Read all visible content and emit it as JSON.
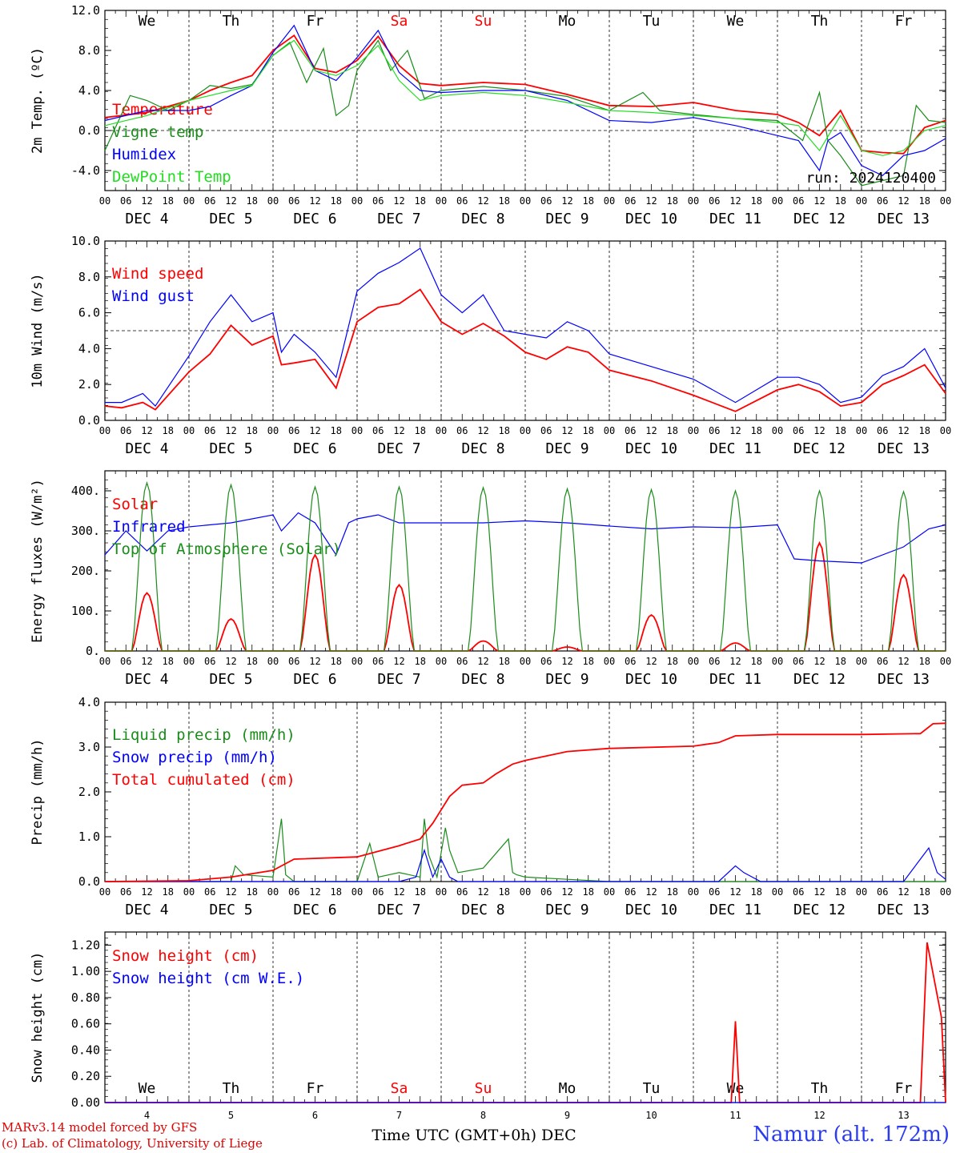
{
  "footer": {
    "credit_line1": "MARv3.14 model forced by GFS",
    "credit_line2": "(c) Lab. of Climatology, University of Liege",
    "station": "Namur (alt. 172m)",
    "time_axis_label": "Time UTC (GMT+0h) DEC"
  },
  "run_label": "run: 2024120400",
  "colors": {
    "red": "#ff0000",
    "green": "#1a8c1a",
    "blue": "#0000ff",
    "lightgreen": "#22dd22",
    "weekend": "#ff0000",
    "axis": "#000000"
  },
  "axis": {
    "hour_ticks": [
      "00",
      "06",
      "12",
      "18"
    ],
    "days": [
      "DEC 4",
      "DEC 5",
      "DEC 6",
      "DEC 7",
      "DEC 8",
      "DEC 9",
      "DEC 10",
      "DEC 11",
      "DEC 12",
      "DEC 13"
    ],
    "weekdays": [
      "We",
      "Th",
      "Fr",
      "Sa",
      "Su",
      "Mo",
      "Tu",
      "We",
      "Th",
      "Fr"
    ],
    "weekend_flags": [
      false,
      false,
      false,
      true,
      true,
      false,
      false,
      false,
      false,
      false
    ],
    "day_numbers": [
      "4",
      "5",
      "6",
      "7",
      "8",
      "9",
      "10",
      "11",
      "12",
      "13"
    ]
  },
  "chart_data": [
    {
      "type": "line",
      "ylabel": "2m Temp. (ºC)",
      "ylim": [
        -6,
        12
      ],
      "yticks": [
        "12.0",
        "8.0",
        "4.0",
        "0.0",
        "-4.0"
      ],
      "reference_line": 0,
      "x_unit": "day index (0 = DEC 4 00 UTC)",
      "series": [
        {
          "name": "Temperature",
          "color": "red",
          "x": [
            0,
            0.5,
            1,
            1.25,
            1.5,
            1.75,
            2,
            2.25,
            2.5,
            2.75,
            3,
            3.25,
            3.5,
            3.75,
            4,
            4.5,
            5,
            5.5,
            6,
            6.5,
            7,
            7.5,
            8,
            8.25,
            8.5,
            8.75,
            9,
            9.25,
            9.5,
            9.75,
            10
          ],
          "y": [
            1.3,
            1.8,
            3.0,
            4.0,
            4.8,
            5.5,
            8.0,
            9.5,
            6.2,
            5.8,
            7.0,
            9.4,
            6.5,
            4.7,
            4.5,
            4.8,
            4.6,
            3.6,
            2.5,
            2.4,
            2.8,
            2.0,
            1.6,
            0.8,
            -0.5,
            2.0,
            -2.0,
            -2.2,
            -2.3,
            0.3,
            1.0
          ]
        },
        {
          "name": "Vigne temp",
          "color": "green",
          "x": [
            0,
            0.3,
            0.5,
            0.75,
            1,
            1.25,
            1.5,
            1.75,
            2,
            2.2,
            2.4,
            2.6,
            2.75,
            2.9,
            3,
            3.25,
            3.4,
            3.6,
            3.8,
            4,
            4.5,
            5,
            5.5,
            6,
            6.4,
            6.6,
            7,
            7.5,
            8,
            8.3,
            8.5,
            8.6,
            8.75,
            9,
            9.25,
            9.5,
            9.65,
            9.8,
            10
          ],
          "y": [
            -2.0,
            3.5,
            3.0,
            2.0,
            3.0,
            4.5,
            4.2,
            4.6,
            7.5,
            8.8,
            4.8,
            8.2,
            1.5,
            2.5,
            6.0,
            9.0,
            6.0,
            8.0,
            3.2,
            4.0,
            4.4,
            4.0,
            3.4,
            2.0,
            3.8,
            2.0,
            1.6,
            1.2,
            1.0,
            -1.0,
            3.8,
            -1.0,
            -2.5,
            -5.5,
            -5.0,
            -4.5,
            2.5,
            1.0,
            0.8
          ]
        },
        {
          "name": "Humidex",
          "color": "blue",
          "x": [
            0,
            0.5,
            1,
            1.25,
            1.5,
            1.75,
            2,
            2.25,
            2.5,
            2.75,
            3,
            3.25,
            3.5,
            3.75,
            4,
            4.5,
            5,
            5.5,
            6,
            6.5,
            7,
            7.5,
            8,
            8.25,
            8.5,
            8.6,
            8.75,
            9,
            9.25,
            9.5,
            9.75,
            10
          ],
          "y": [
            1.0,
            2.0,
            2.0,
            2.4,
            3.5,
            4.5,
            7.8,
            10.5,
            6.0,
            5.0,
            7.3,
            10.0,
            5.8,
            4.0,
            3.8,
            4.0,
            4.0,
            3.0,
            1.0,
            0.8,
            1.3,
            0.5,
            -0.5,
            -1.0,
            -4.0,
            -1.0,
            -0.2,
            -3.5,
            -4.5,
            -2.5,
            -2.0,
            -0.8
          ]
        },
        {
          "name": "DewPoint Temp",
          "color": "lightgreen",
          "x": [
            0,
            0.5,
            1,
            1.25,
            1.5,
            1.75,
            2,
            2.25,
            2.5,
            2.75,
            3,
            3.25,
            3.5,
            3.75,
            4,
            4.5,
            5,
            5.5,
            6,
            6.5,
            7,
            7.5,
            8,
            8.25,
            8.5,
            8.75,
            9,
            9.25,
            9.5,
            9.75,
            10
          ],
          "y": [
            0.5,
            1.5,
            3.0,
            3.5,
            4.0,
            4.5,
            7.5,
            9.0,
            6.0,
            5.5,
            6.5,
            8.5,
            5.0,
            3.0,
            3.5,
            3.8,
            3.5,
            2.8,
            2.0,
            1.8,
            1.5,
            1.2,
            0.8,
            0.5,
            -2.0,
            1.5,
            -2.0,
            -2.5,
            -2.0,
            0.0,
            0.5
          ]
        }
      ],
      "annotation": "run: 2024120400"
    },
    {
      "type": "line",
      "ylabel": "10m Wind (m/s)",
      "ylim": [
        0,
        10
      ],
      "yticks": [
        "10.0",
        "8.0",
        "6.0",
        "4.0",
        "2.0",
        "0.0"
      ],
      "reference_line": 5,
      "series": [
        {
          "name": "Wind speed",
          "color": "red",
          "x": [
            0,
            0.2,
            0.45,
            0.6,
            1,
            1.25,
            1.5,
            1.75,
            2,
            2.1,
            2.25,
            2.5,
            2.75,
            3,
            3.25,
            3.5,
            3.75,
            4,
            4.25,
            4.5,
            4.75,
            5,
            5.25,
            5.5,
            5.75,
            6,
            6.5,
            7,
            7.5,
            8,
            8.25,
            8.5,
            8.75,
            9,
            9.25,
            9.5,
            9.75,
            10
          ],
          "y": [
            0.8,
            0.7,
            1.0,
            0.6,
            2.7,
            3.7,
            5.3,
            4.2,
            4.7,
            3.1,
            3.2,
            3.4,
            1.8,
            5.5,
            6.3,
            6.5,
            7.3,
            5.5,
            4.8,
            5.4,
            4.7,
            3.8,
            3.4,
            4.1,
            3.8,
            2.8,
            2.2,
            1.4,
            0.5,
            1.7,
            2.0,
            1.6,
            0.8,
            1.0,
            2.0,
            2.5,
            3.1,
            1.5
          ]
        },
        {
          "name": "Wind gust",
          "color": "blue",
          "x": [
            0,
            0.2,
            0.45,
            0.6,
            1,
            1.25,
            1.5,
            1.75,
            2,
            2.1,
            2.25,
            2.5,
            2.75,
            3,
            3.25,
            3.5,
            3.75,
            4,
            4.25,
            4.5,
            4.75,
            5,
            5.25,
            5.5,
            5.75,
            6,
            6.5,
            7,
            7.5,
            8,
            8.25,
            8.5,
            8.75,
            9,
            9.25,
            9.5,
            9.75,
            10
          ],
          "y": [
            1.0,
            1.0,
            1.5,
            0.8,
            3.6,
            5.5,
            7.0,
            5.5,
            6.0,
            3.8,
            4.8,
            3.8,
            2.4,
            7.2,
            8.2,
            8.8,
            9.6,
            7.0,
            6.0,
            7.0,
            5.0,
            4.8,
            4.6,
            5.5,
            5.0,
            3.7,
            3.0,
            2.3,
            1.0,
            2.4,
            2.4,
            2.0,
            1.0,
            1.3,
            2.5,
            3.0,
            4.0,
            1.8
          ]
        }
      ]
    },
    {
      "type": "line",
      "ylabel": "Energy fluxes (W/m²)",
      "ylim": [
        0,
        450
      ],
      "yticks": [
        "400.",
        "300.",
        "200.",
        "100.",
        "0."
      ],
      "series": [
        {
          "name": "Solar",
          "color": "red",
          "peaks": [
            145,
            80,
            240,
            165,
            25,
            10,
            90,
            20,
            270,
            190
          ]
        },
        {
          "name": "Infrared",
          "color": "blue",
          "x": [
            0,
            0.25,
            0.5,
            0.75,
            1,
            1.5,
            2,
            2.1,
            2.3,
            2.5,
            2.75,
            2.9,
            3,
            3.25,
            3.5,
            4,
            4.5,
            5,
            5.5,
            6,
            6.5,
            7,
            7.5,
            8,
            8.2,
            8.5,
            9,
            9.5,
            9.8,
            10
          ],
          "y": [
            240,
            300,
            250,
            300,
            310,
            320,
            340,
            300,
            345,
            320,
            240,
            320,
            330,
            340,
            320,
            320,
            320,
            325,
            320,
            312,
            305,
            310,
            308,
            315,
            230,
            225,
            220,
            260,
            305,
            315
          ]
        },
        {
          "name": "Top of Atmosphere (Solar)",
          "color": "green",
          "peaks": [
            420,
            415,
            410,
            410,
            408,
            405,
            403,
            400,
            400,
            398
          ]
        }
      ]
    },
    {
      "type": "line",
      "ylabel": "Precip (mm/h)",
      "ylim": [
        0,
        4
      ],
      "yticks": [
        "4.0",
        "3.0",
        "2.0",
        "1.0",
        "0.0"
      ],
      "series": [
        {
          "name": "Liquid precip (mm/h)",
          "color": "green",
          "x": [
            0,
            1.5,
            1.55,
            1.65,
            2,
            2.1,
            2.15,
            2.25,
            3,
            3.15,
            3.25,
            3.5,
            3.75,
            3.8,
            3.85,
            3.95,
            4.05,
            4.1,
            4.2,
            4.5,
            4.8,
            4.85,
            4.9,
            5,
            5.5,
            6,
            10
          ],
          "y": [
            0,
            0,
            0.35,
            0.15,
            0.1,
            1.4,
            0.15,
            0.0,
            0,
            0.85,
            0.1,
            0.2,
            0.1,
            1.4,
            0.6,
            0.1,
            1.2,
            0.7,
            0.2,
            0.3,
            0.95,
            0.2,
            0.15,
            0.1,
            0.05,
            0,
            0
          ]
        },
        {
          "name": "Snow precip (mm/h)",
          "color": "blue",
          "x": [
            0,
            3.5,
            3.7,
            3.8,
            3.9,
            4.0,
            4.1,
            4.2,
            5,
            7.3,
            7.5,
            7.6,
            7.8,
            9.5,
            9.7,
            9.8,
            9.9,
            10
          ],
          "y": [
            0,
            0,
            0.1,
            0.7,
            0.1,
            0.5,
            0.1,
            0.0,
            0,
            0,
            0.35,
            0.2,
            0.0,
            0,
            0.5,
            0.75,
            0.2,
            0.05
          ]
        },
        {
          "name": "Total cumulated (cm)",
          "color": "red",
          "x": [
            0,
            1,
            1.5,
            2,
            2.25,
            3,
            3.5,
            3.75,
            3.9,
            4.1,
            4.25,
            4.5,
            4.65,
            4.85,
            5,
            5.5,
            6,
            7,
            7.3,
            7.5,
            8,
            9,
            9.7,
            9.85,
            10
          ],
          "y": [
            0,
            0.02,
            0.1,
            0.25,
            0.5,
            0.55,
            0.8,
            0.95,
            1.3,
            1.9,
            2.15,
            2.2,
            2.4,
            2.62,
            2.7,
            2.9,
            2.97,
            3.02,
            3.1,
            3.25,
            3.28,
            3.28,
            3.3,
            3.52,
            3.53
          ]
        }
      ]
    },
    {
      "type": "line",
      "ylabel": "Snow height (cm)",
      "ylim": [
        0,
        1.3
      ],
      "yticks": [
        "1.20",
        "1.00",
        "0.80",
        "0.60",
        "0.40",
        "0.20",
        "0.00"
      ],
      "xlabel": "Time UTC (GMT+0h) DEC",
      "series": [
        {
          "name": "Snow height (cm)",
          "color": "red",
          "x": [
            0,
            7.45,
            7.5,
            7.55,
            9.7,
            9.78,
            9.95,
            10
          ],
          "y": [
            0,
            0,
            0.62,
            0,
            0,
            1.22,
            0.65,
            0
          ]
        },
        {
          "name": "Snow height (cm W.E.)",
          "color": "blue",
          "x": [
            0,
            10
          ],
          "y": [
            0,
            0
          ]
        }
      ]
    }
  ]
}
